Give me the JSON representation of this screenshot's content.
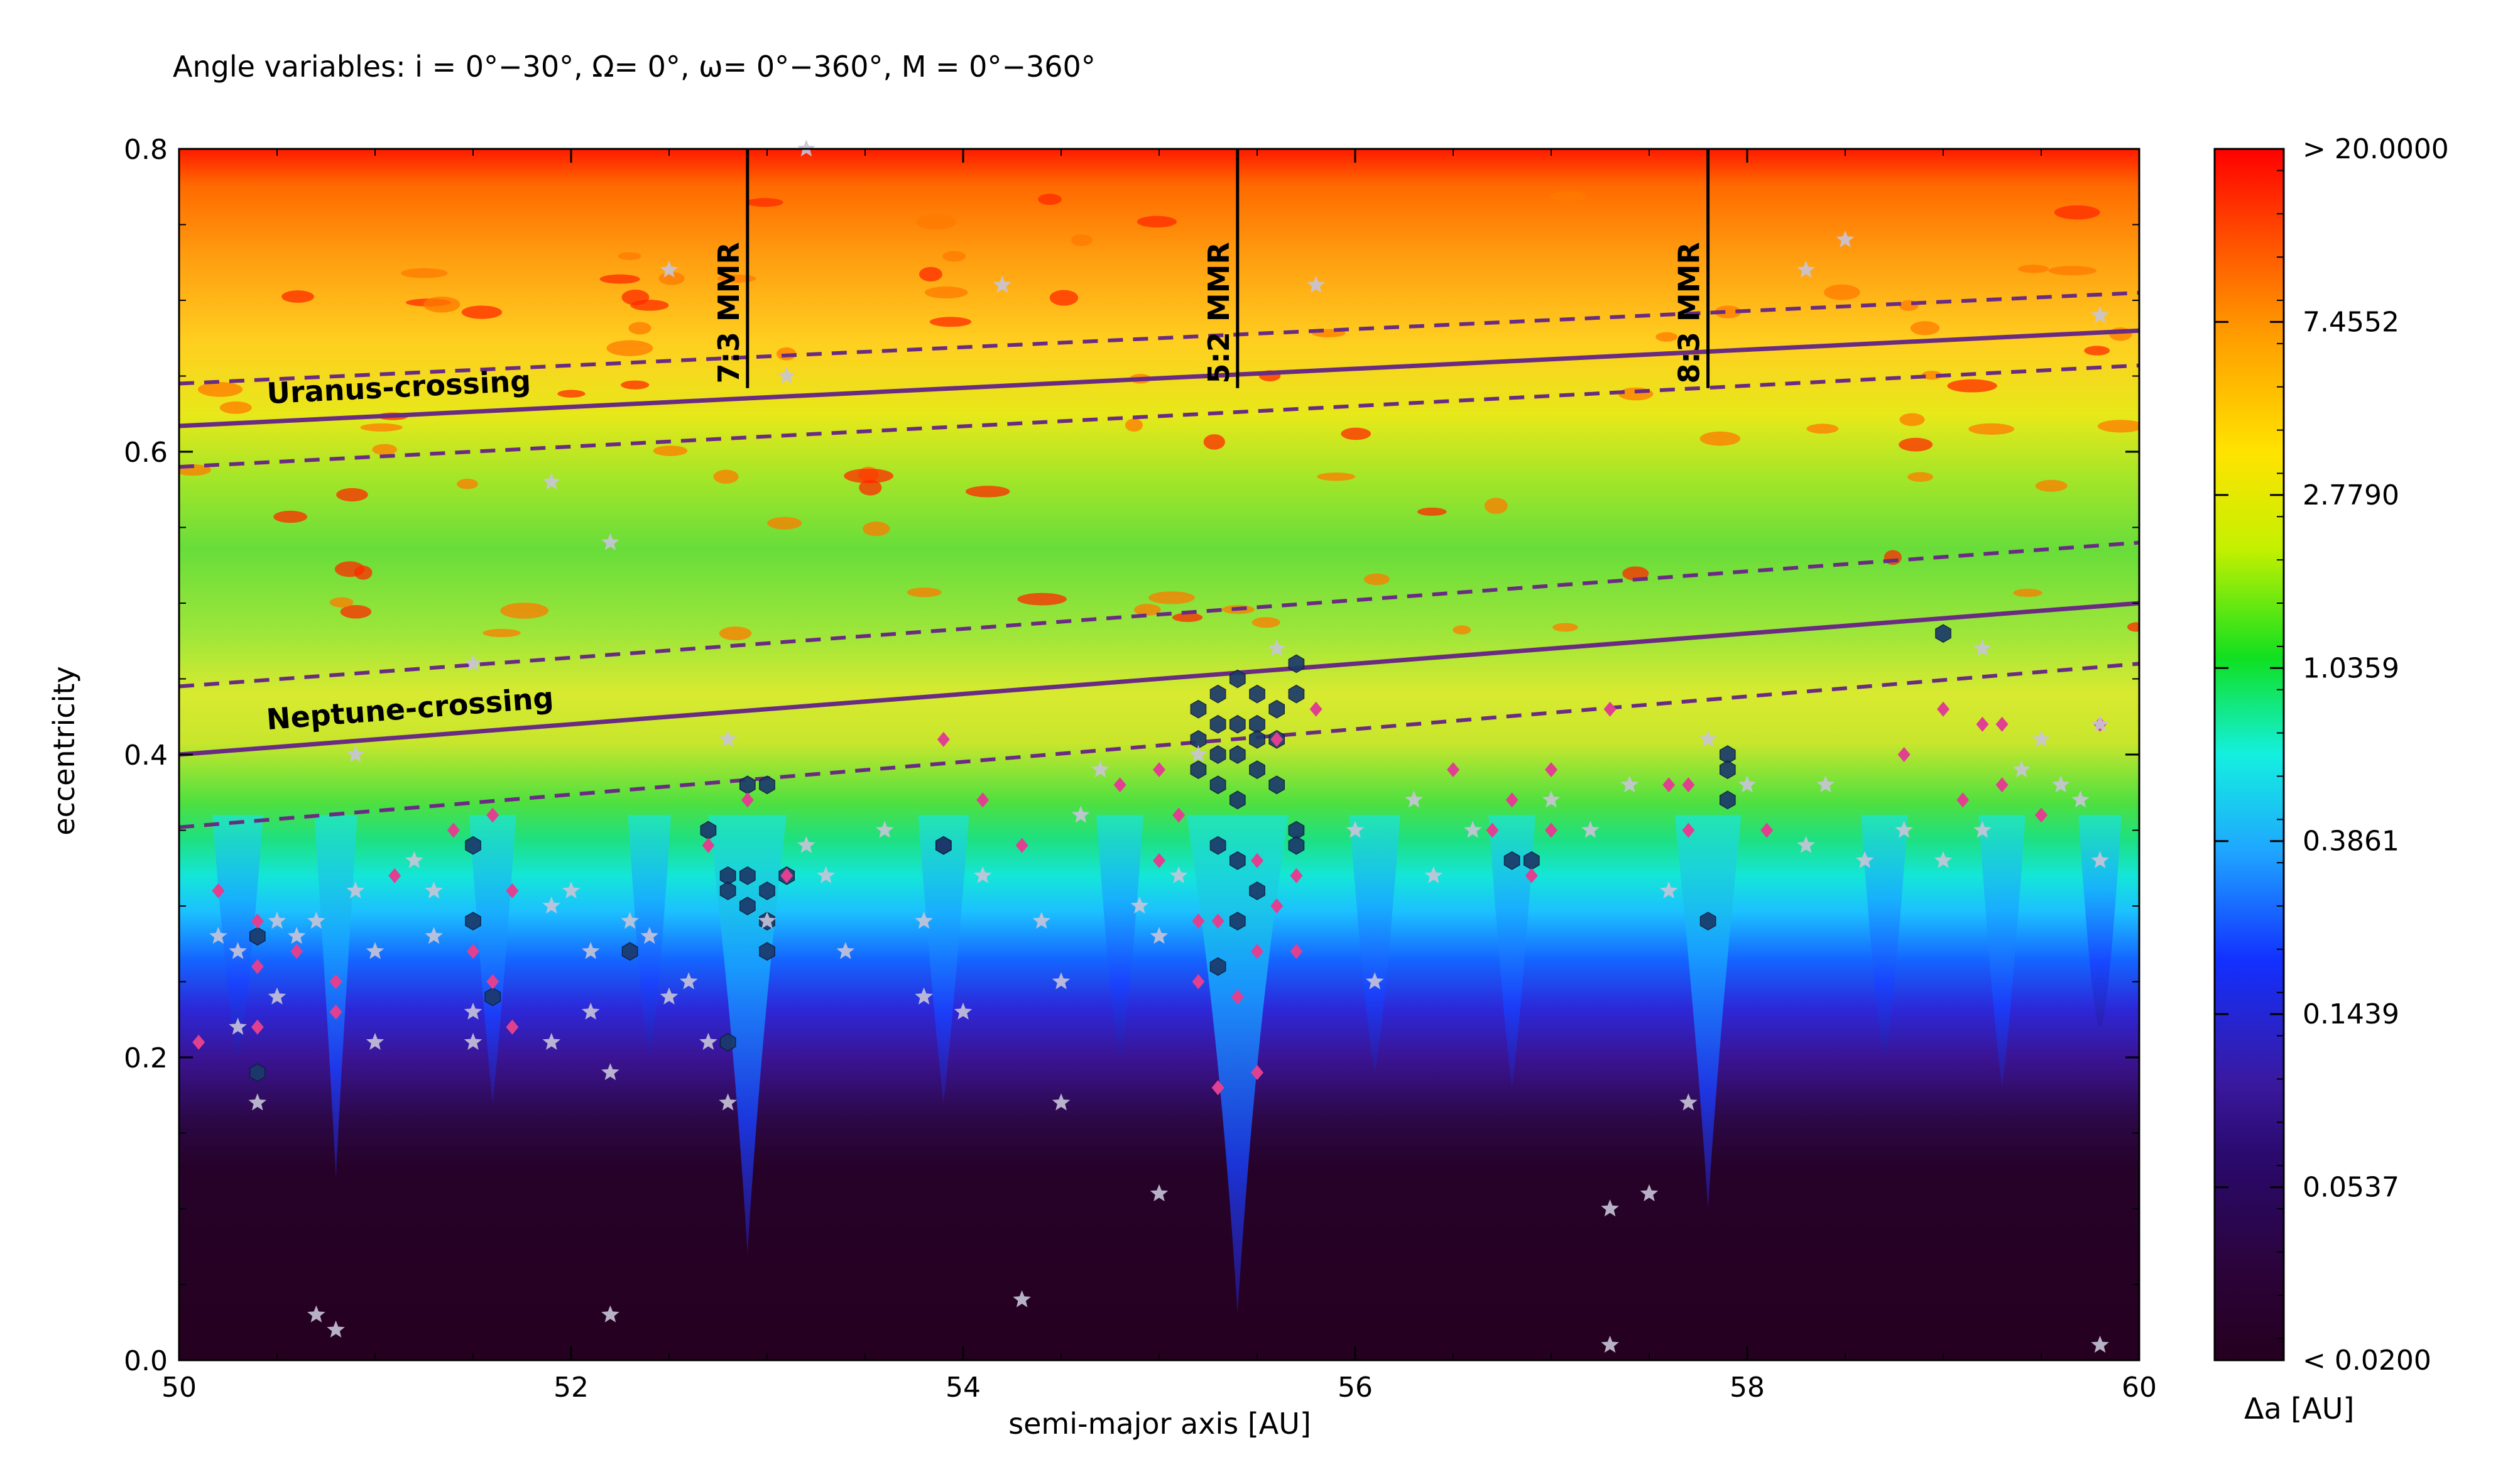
{
  "chart_data": {
    "type": "heatmap",
    "title": "Angle variables: i = 0°−30°, Ω= 0°, ω= 0°−360°, M = 0°−360°",
    "xlabel": "semi-major axis [AU]",
    "ylabel": "eccentricity",
    "xlim": [
      50,
      60
    ],
    "ylim": [
      0.0,
      0.8
    ],
    "x_ticks": [
      "50",
      "52",
      "54",
      "56",
      "58",
      "60"
    ],
    "y_ticks": [
      "0.0",
      "0.2",
      "0.4",
      "0.6",
      "0.8"
    ],
    "grid": false,
    "colorbar": {
      "label": "Δa [AU]",
      "ticks": [
        "> 20.0000",
        "7.4552",
        "2.7790",
        "1.0359",
        "0.3861",
        "0.1439",
        "0.0537",
        "<  0.0200"
      ],
      "scale": "log",
      "range": [
        0.02,
        20.0
      ]
    },
    "resonances": [
      {
        "label": "7:3 MMR",
        "a": 52.9
      },
      {
        "label": "5:2 MMR",
        "a": 55.4
      },
      {
        "label": "8:3 MMR",
        "a": 57.8
      }
    ],
    "crossing_lines": [
      {
        "label": "Uranus-crossing",
        "x": [
          50,
          60
        ],
        "e": [
          0.617,
          0.68
        ],
        "upper_dashed": [
          0.645,
          0.705
        ],
        "lower_dashed": [
          0.59,
          0.657
        ]
      },
      {
        "label": "Neptune-crossing",
        "x": [
          50,
          60
        ],
        "e": [
          0.4,
          0.5
        ],
        "upper_dashed": [
          0.445,
          0.54
        ],
        "lower_dashed": [
          0.352,
          0.46
        ]
      }
    ],
    "series": [
      {
        "marker": "hexagon",
        "color": "#1b3a6b",
        "points": [
          [
            55.2,
            0.43
          ],
          [
            55.3,
            0.44
          ],
          [
            55.4,
            0.45
          ],
          [
            55.5,
            0.44
          ],
          [
            55.3,
            0.42
          ],
          [
            55.4,
            0.42
          ],
          [
            55.5,
            0.42
          ],
          [
            55.6,
            0.43
          ],
          [
            55.2,
            0.41
          ],
          [
            55.3,
            0.4
          ],
          [
            55.4,
            0.4
          ],
          [
            55.5,
            0.41
          ],
          [
            55.6,
            0.41
          ],
          [
            55.7,
            0.44
          ],
          [
            55.7,
            0.46
          ],
          [
            55.2,
            0.39
          ],
          [
            55.3,
            0.38
          ],
          [
            55.5,
            0.39
          ],
          [
            55.6,
            0.38
          ],
          [
            55.4,
            0.37
          ],
          [
            55.7,
            0.35
          ],
          [
            55.3,
            0.34
          ],
          [
            55.4,
            0.33
          ],
          [
            55.5,
            0.31
          ],
          [
            55.3,
            0.26
          ],
          [
            55.4,
            0.29
          ],
          [
            55.7,
            0.34
          ],
          [
            52.9,
            0.38
          ],
          [
            53.0,
            0.38
          ],
          [
            52.7,
            0.35
          ],
          [
            52.8,
            0.32
          ],
          [
            52.9,
            0.32
          ],
          [
            53.0,
            0.31
          ],
          [
            53.1,
            0.32
          ],
          [
            52.9,
            0.3
          ],
          [
            53.0,
            0.29
          ],
          [
            53.0,
            0.27
          ],
          [
            52.8,
            0.31
          ],
          [
            52.8,
            0.21
          ],
          [
            53.9,
            0.34
          ],
          [
            53.9,
            0.34
          ],
          [
            52.3,
            0.27
          ],
          [
            51.5,
            0.29
          ],
          [
            51.5,
            0.34
          ],
          [
            51.6,
            0.24
          ],
          [
            50.4,
            0.28
          ],
          [
            50.4,
            0.19
          ],
          [
            56.8,
            0.33
          ],
          [
            56.9,
            0.33
          ],
          [
            57.8,
            0.29
          ],
          [
            57.9,
            0.4
          ],
          [
            57.9,
            0.37
          ],
          [
            57.9,
            0.39
          ],
          [
            59.0,
            0.48
          ]
        ]
      },
      {
        "marker": "diamond",
        "color": "#e0408f",
        "points": [
          [
            50.1,
            0.21
          ],
          [
            50.2,
            0.31
          ],
          [
            50.4,
            0.29
          ],
          [
            50.4,
            0.26
          ],
          [
            50.4,
            0.22
          ],
          [
            50.6,
            0.27
          ],
          [
            50.8,
            0.23
          ],
          [
            50.8,
            0.25
          ],
          [
            51.1,
            0.32
          ],
          [
            51.4,
            0.35
          ],
          [
            51.5,
            0.27
          ],
          [
            51.6,
            0.25
          ],
          [
            51.6,
            0.36
          ],
          [
            51.7,
            0.22
          ],
          [
            51.7,
            0.31
          ],
          [
            52.7,
            0.34
          ],
          [
            52.9,
            0.37
          ],
          [
            53.1,
            0.32
          ],
          [
            53.9,
            0.41
          ],
          [
            54.1,
            0.37
          ],
          [
            54.3,
            0.34
          ],
          [
            54.8,
            0.38
          ],
          [
            55.0,
            0.39
          ],
          [
            55.1,
            0.36
          ],
          [
            55.0,
            0.33
          ],
          [
            55.2,
            0.29
          ],
          [
            55.3,
            0.29
          ],
          [
            55.2,
            0.25
          ],
          [
            55.4,
            0.24
          ],
          [
            55.5,
            0.27
          ],
          [
            55.5,
            0.33
          ],
          [
            55.6,
            0.3
          ],
          [
            55.7,
            0.27
          ],
          [
            55.7,
            0.32
          ],
          [
            55.8,
            0.43
          ],
          [
            55.6,
            0.41
          ],
          [
            55.5,
            0.19
          ],
          [
            55.3,
            0.18
          ],
          [
            56.5,
            0.39
          ],
          [
            56.7,
            0.35
          ],
          [
            56.8,
            0.37
          ],
          [
            56.9,
            0.32
          ],
          [
            57.0,
            0.39
          ],
          [
            57.0,
            0.35
          ],
          [
            57.3,
            0.43
          ],
          [
            57.6,
            0.38
          ],
          [
            57.7,
            0.38
          ],
          [
            57.7,
            0.35
          ],
          [
            58.1,
            0.35
          ],
          [
            58.8,
            0.4
          ],
          [
            59.0,
            0.43
          ],
          [
            59.1,
            0.37
          ],
          [
            59.2,
            0.42
          ],
          [
            59.3,
            0.38
          ],
          [
            59.3,
            0.42
          ],
          [
            59.5,
            0.36
          ],
          [
            59.8,
            0.42
          ]
        ]
      },
      {
        "marker": "star",
        "color": "#c8c4d8",
        "points": [
          [
            50.2,
            0.28
          ],
          [
            50.3,
            0.27
          ],
          [
            50.3,
            0.22
          ],
          [
            50.4,
            0.17
          ],
          [
            50.5,
            0.29
          ],
          [
            50.5,
            0.24
          ],
          [
            50.6,
            0.28
          ],
          [
            50.7,
            0.29
          ],
          [
            50.7,
            0.03
          ],
          [
            50.8,
            0.02
          ],
          [
            50.9,
            0.4
          ],
          [
            50.9,
            0.31
          ],
          [
            51.0,
            0.27
          ],
          [
            51.0,
            0.21
          ],
          [
            51.2,
            0.33
          ],
          [
            51.3,
            0.31
          ],
          [
            51.3,
            0.28
          ],
          [
            51.5,
            0.23
          ],
          [
            51.5,
            0.21
          ],
          [
            51.9,
            0.3
          ],
          [
            51.9,
            0.21
          ],
          [
            52.0,
            0.31
          ],
          [
            52.1,
            0.23
          ],
          [
            52.1,
            0.27
          ],
          [
            52.2,
            0.19
          ],
          [
            52.2,
            0.03
          ],
          [
            52.3,
            0.29
          ],
          [
            52.4,
            0.28
          ],
          [
            52.5,
            0.24
          ],
          [
            52.6,
            0.25
          ],
          [
            52.7,
            0.21
          ],
          [
            52.8,
            0.17
          ],
          [
            52.8,
            0.41
          ],
          [
            53.0,
            0.29
          ],
          [
            53.2,
            0.34
          ],
          [
            53.3,
            0.32
          ],
          [
            53.4,
            0.27
          ],
          [
            53.6,
            0.35
          ],
          [
            53.8,
            0.29
          ],
          [
            53.8,
            0.24
          ],
          [
            54.0,
            0.23
          ],
          [
            54.1,
            0.32
          ],
          [
            54.3,
            0.04
          ],
          [
            54.4,
            0.29
          ],
          [
            54.5,
            0.25
          ],
          [
            54.5,
            0.17
          ],
          [
            54.6,
            0.36
          ],
          [
            54.7,
            0.39
          ],
          [
            54.9,
            0.3
          ],
          [
            55.0,
            0.28
          ],
          [
            55.0,
            0.11
          ],
          [
            55.1,
            0.32
          ],
          [
            55.2,
            0.4
          ],
          [
            56.0,
            0.35
          ],
          [
            56.1,
            0.25
          ],
          [
            56.3,
            0.37
          ],
          [
            56.4,
            0.32
          ],
          [
            56.6,
            0.35
          ],
          [
            57.0,
            0.37
          ],
          [
            57.2,
            0.35
          ],
          [
            57.3,
            0.1
          ],
          [
            57.4,
            0.38
          ],
          [
            57.5,
            0.11
          ],
          [
            57.6,
            0.31
          ],
          [
            57.7,
            0.17
          ],
          [
            57.8,
            0.41
          ],
          [
            58.0,
            0.38
          ],
          [
            58.3,
            0.34
          ],
          [
            58.4,
            0.38
          ],
          [
            58.6,
            0.33
          ],
          [
            58.8,
            0.35
          ],
          [
            59.0,
            0.33
          ],
          [
            59.2,
            0.35
          ],
          [
            59.4,
            0.39
          ],
          [
            59.5,
            0.41
          ],
          [
            59.6,
            0.38
          ],
          [
            59.7,
            0.37
          ],
          [
            59.8,
            0.42
          ],
          [
            59.8,
            0.33
          ],
          [
            59.8,
            0.01
          ],
          [
            57.3,
            0.01
          ],
          [
            51.9,
            0.58
          ],
          [
            53.1,
            0.65
          ],
          [
            53.2,
            0.8
          ],
          [
            52.5,
            0.72
          ],
          [
            54.2,
            0.71
          ],
          [
            55.8,
            0.71
          ],
          [
            58.3,
            0.72
          ],
          [
            58.5,
            0.74
          ],
          [
            59.8,
            0.69
          ],
          [
            51.5,
            0.46
          ],
          [
            52.2,
            0.54
          ],
          [
            55.6,
            0.47
          ],
          [
            59.2,
            0.47
          ]
        ]
      }
    ]
  },
  "colors": {
    "crossing_line": "#6a2c83",
    "resonance_line": "#000000",
    "background": "#ffffff"
  }
}
